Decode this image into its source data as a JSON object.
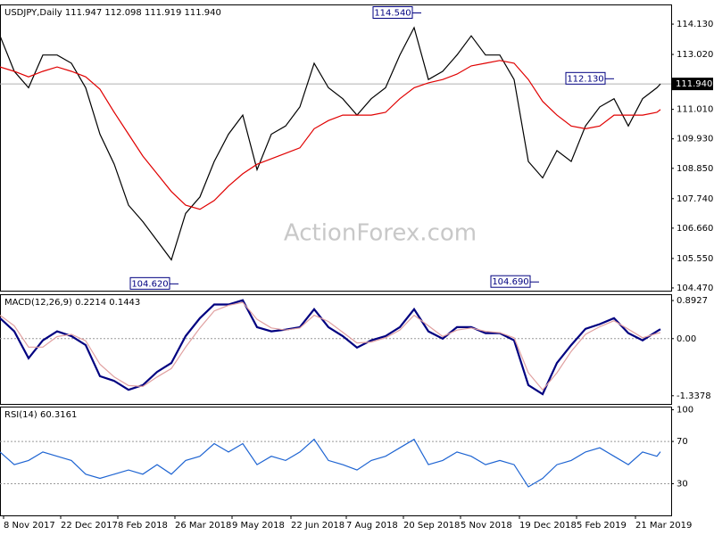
{
  "watermark": "ActionForex.com",
  "chart_data": [
    {
      "type": "line",
      "title": "USDJPY,Daily  111.947 112.098 111.919 111.940",
      "x": [
        0,
        4,
        8,
        12,
        16,
        20,
        24,
        28,
        32,
        36,
        40,
        44,
        48,
        52,
        56,
        60,
        64,
        68,
        72,
        76,
        80,
        84,
        88,
        92,
        96,
        100,
        104,
        108,
        112,
        116,
        120,
        124,
        128,
        132,
        136,
        140,
        144,
        148,
        152,
        156,
        160,
        164,
        168,
        172,
        176,
        180,
        184,
        185
      ],
      "xlim": [
        0,
        188
      ],
      "ylim": [
        104.37,
        114.85
      ],
      "yticks": [
        {
          "value": 114.13,
          "label": "114.130"
        },
        {
          "value": 113.02,
          "label": "113.020"
        },
        {
          "value": 111.01,
          "label": "111.010"
        },
        {
          "value": 109.93,
          "label": "109.930"
        },
        {
          "value": 108.85,
          "label": "108.850"
        },
        {
          "value": 107.74,
          "label": "107.740"
        },
        {
          "value": 106.66,
          "label": "106.660"
        },
        {
          "value": 105.55,
          "label": "105.550"
        },
        {
          "value": 104.47,
          "label": "104.470"
        }
      ],
      "grid": false,
      "series": [
        {
          "color": "#000000",
          "values": [
            113.7,
            112.4,
            111.8,
            113.0,
            113.0,
            112.7,
            111.8,
            110.1,
            109.0,
            107.5,
            106.9,
            106.2,
            105.5,
            107.2,
            107.8,
            109.1,
            110.1,
            110.8,
            108.8,
            110.1,
            110.4,
            111.1,
            112.7,
            111.8,
            111.4,
            110.8,
            111.4,
            111.8,
            113.0,
            114.0,
            112.1,
            112.4,
            113.0,
            113.7,
            113.0,
            113.0,
            112.1,
            109.1,
            108.5,
            109.5,
            109.1,
            110.4,
            111.1,
            111.4,
            110.4,
            111.4,
            111.8,
            111.94
          ]
        },
        {
          "color": "#e00000",
          "values": [
            112.56,
            112.4,
            112.2,
            112.4,
            112.56,
            112.4,
            112.2,
            111.75,
            110.9,
            110.1,
            109.3,
            108.65,
            108.0,
            107.5,
            107.35,
            107.67,
            108.2,
            108.65,
            109.0,
            109.2,
            109.4,
            109.6,
            110.3,
            110.6,
            110.8,
            110.8,
            110.8,
            110.9,
            111.4,
            111.8,
            111.98,
            112.1,
            112.3,
            112.6,
            112.7,
            112.8,
            112.7,
            112.1,
            111.3,
            110.8,
            110.4,
            110.3,
            110.4,
            110.8,
            110.8,
            110.8,
            110.9,
            111.0
          ]
        }
      ],
      "annotations": [
        {
          "x": 116,
          "value": 114.54,
          "label": "114.540"
        },
        {
          "x": 48,
          "value": 104.62,
          "label": "104.620"
        },
        {
          "x": 149,
          "value": 104.69,
          "label": "104.690"
        },
        {
          "x": 170,
          "value": 112.13,
          "label": "112.130"
        }
      ],
      "last": {
        "value": 111.94,
        "label": "111.940"
      }
    },
    {
      "type": "line",
      "title": "MACD(12,26,9) 0.2214 0.1443",
      "x": [
        0,
        4,
        8,
        12,
        16,
        20,
        24,
        28,
        32,
        36,
        40,
        44,
        48,
        52,
        56,
        60,
        64,
        68,
        72,
        76,
        80,
        84,
        88,
        92,
        96,
        100,
        104,
        108,
        112,
        116,
        120,
        124,
        128,
        132,
        136,
        140,
        144,
        148,
        152,
        156,
        160,
        164,
        168,
        172,
        176,
        180,
        184,
        185
      ],
      "xlim": [
        0,
        188
      ],
      "ylim": [
        -1.53,
        1.04
      ],
      "yticks": [
        0.8927,
        {
          "value": 0,
          "label": "0.00"
        },
        -1.3378
      ],
      "grid": true,
      "grid_values": [
        0
      ],
      "series": [
        {
          "color": "#000080",
          "values": [
            0.48,
            0.17,
            -0.46,
            -0.04,
            0.17,
            0.06,
            -0.15,
            -0.88,
            -0.99,
            -1.2,
            -1.09,
            -0.78,
            -0.57,
            0.06,
            0.48,
            0.8,
            0.8,
            0.9,
            0.27,
            0.17,
            0.21,
            0.27,
            0.69,
            0.27,
            0.06,
            -0.21,
            -0.04,
            0.06,
            0.27,
            0.69,
            0.17,
            0,
            0.27,
            0.27,
            0.13,
            0.13,
            -0.04,
            -1.09,
            -1.3,
            -0.57,
            -0.15,
            0.23,
            0.34,
            0.48,
            0.13,
            -0.04,
            0.17,
            0.2214
          ]
        },
        {
          "color": "#e0a0a0",
          "values": [
            0.55,
            0.3,
            -0.2,
            -0.2,
            0.05,
            0.1,
            -0.05,
            -0.6,
            -0.9,
            -1.1,
            -1.12,
            -0.9,
            -0.7,
            -0.2,
            0.25,
            0.65,
            0.78,
            0.85,
            0.45,
            0.25,
            0.2,
            0.25,
            0.55,
            0.4,
            0.15,
            -0.1,
            -0.08,
            0.02,
            0.2,
            0.55,
            0.3,
            0.05,
            0.2,
            0.25,
            0.17,
            0.14,
            0.02,
            -0.8,
            -1.2,
            -0.8,
            -0.3,
            0.1,
            0.28,
            0.42,
            0.22,
            0.02,
            0.12,
            0.1443
          ]
        }
      ]
    },
    {
      "type": "line",
      "title": "RSI(14) 60.3161",
      "x": [
        0,
        4,
        8,
        12,
        16,
        20,
        24,
        28,
        32,
        36,
        40,
        44,
        48,
        52,
        56,
        60,
        64,
        68,
        72,
        76,
        80,
        84,
        88,
        92,
        96,
        100,
        104,
        108,
        112,
        116,
        120,
        124,
        128,
        132,
        136,
        140,
        144,
        148,
        152,
        156,
        160,
        164,
        168,
        172,
        176,
        180,
        184,
        185
      ],
      "xlim": [
        0,
        188
      ],
      "ylim": [
        0,
        103
      ],
      "yticks": [
        100,
        70,
        30
      ],
      "grid": true,
      "grid_values": [
        70,
        30
      ],
      "xticks": [
        {
          "value": 1,
          "label": "8 Nov 2017"
        },
        {
          "value": 17,
          "label": "22 Dec 2017"
        },
        {
          "value": 33,
          "label": "8 Feb 2018"
        },
        {
          "value": 49,
          "label": "26 Mar 2018"
        },
        {
          "value": 65,
          "label": "9 May 2018"
        },
        {
          "value": 81.5,
          "label": "22 Jun 2018"
        },
        {
          "value": 97,
          "label": "7 Aug 2018"
        },
        {
          "value": 113,
          "label": "20 Sep 2018"
        },
        {
          "value": 129,
          "label": "5 Nov 2018"
        },
        {
          "value": 145.5,
          "label": "19 Dec 2018"
        },
        {
          "value": 161.5,
          "label": "5 Feb 2019"
        },
        {
          "value": 178,
          "label": "21 Mar 2019"
        }
      ],
      "series": [
        {
          "color": "#1e64d2",
          "values": [
            60,
            48,
            52,
            60,
            56,
            52,
            39,
            35,
            39,
            43,
            39,
            48,
            39,
            52,
            56,
            68,
            60,
            68,
            48,
            56,
            52,
            60,
            72,
            52,
            48,
            43,
            52,
            56,
            64,
            72,
            48,
            52,
            60,
            56,
            48,
            52,
            48,
            27,
            35,
            48,
            52,
            60,
            64,
            56,
            48,
            60,
            56,
            60.3161
          ]
        }
      ]
    }
  ]
}
